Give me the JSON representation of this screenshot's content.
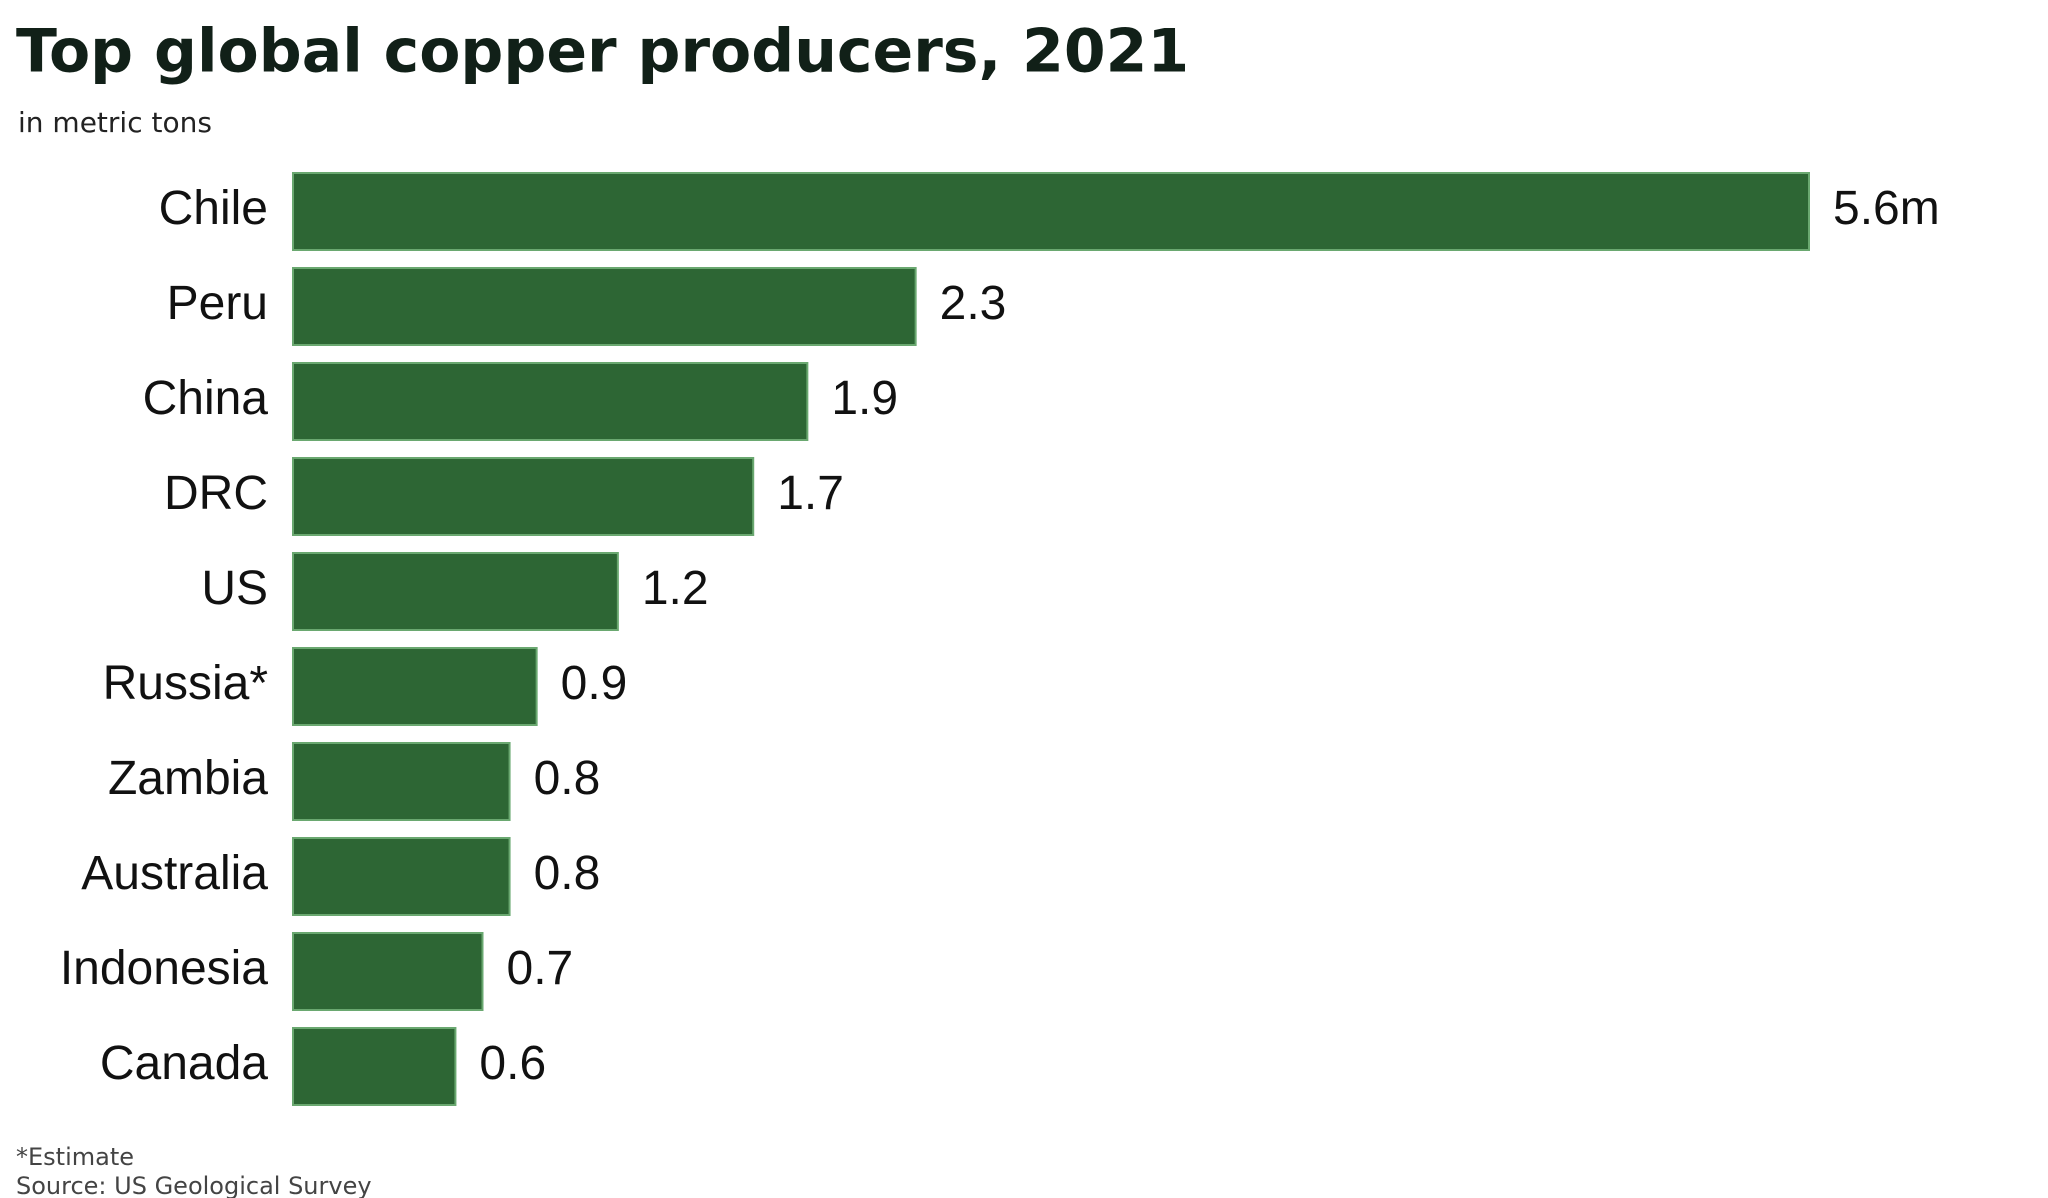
{
  "chart_data": {
    "type": "bar",
    "orientation": "horizontal",
    "title": "Top global copper producers, 2021",
    "subtitle": "in metric tons",
    "categories": [
      "Chile",
      "Peru",
      "China",
      "DRC",
      "US",
      "Russia*",
      "Zambia",
      "Australia",
      "Indonesia",
      "Canada"
    ],
    "values": [
      5.6,
      2.3,
      1.9,
      1.7,
      1.2,
      0.9,
      0.8,
      0.8,
      0.7,
      0.6
    ],
    "value_labels": [
      "5.6m",
      "2.3",
      "1.9",
      "1.7",
      "1.2",
      "0.9",
      "0.8",
      "0.8",
      "0.7",
      "0.6"
    ],
    "color": "#2d6634",
    "footnote": "*Estimate",
    "source": "Source: US Geological Survey"
  }
}
